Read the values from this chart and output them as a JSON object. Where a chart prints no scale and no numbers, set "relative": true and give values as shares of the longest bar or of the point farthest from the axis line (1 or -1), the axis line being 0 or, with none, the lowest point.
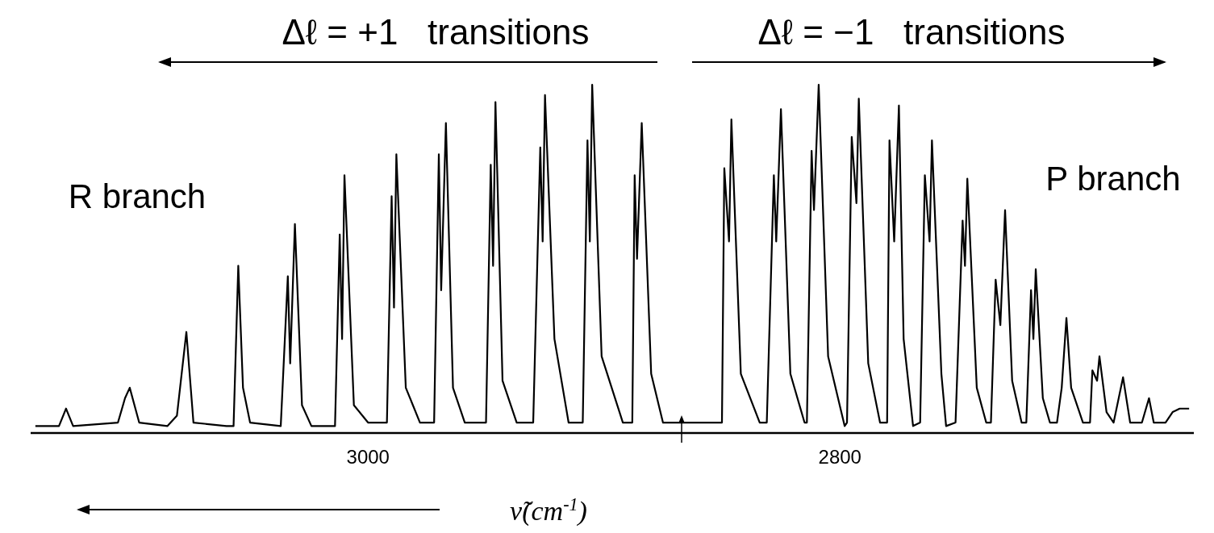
{
  "chart_data": {
    "type": "line",
    "relative": true,
    "xlabel": "ν̃(cm$^{-1}$)",
    "xlim": [
      3143,
      2650
    ],
    "xticks": [
      3000,
      2800
    ],
    "grid": false,
    "marker": "none",
    "line_style": "solid",
    "annotations": [
      "Δℓ = +1   transitions",
      "Δℓ = −1   transitions",
      "R branch",
      "P branch"
    ],
    "x": [
      3141,
      3131,
      3128,
      3125,
      3106,
      3103,
      3101,
      3097,
      3085,
      3081,
      3077,
      3074,
      3060,
      3057,
      3055,
      3053,
      3050,
      3037,
      3034,
      3033,
      3031,
      3028,
      3024,
      3014,
      3012,
      3011,
      3010,
      3006,
      3000,
      2992,
      2990,
      2989,
      2988,
      2984,
      2978,
      2972,
      2970,
      2969,
      2967,
      2964,
      2959,
      2950,
      2948,
      2947,
      2946,
      2943,
      2937,
      2930,
      2927,
      2926,
      2925,
      2921,
      2915,
      2909,
      2907,
      2906,
      2905,
      2901,
      2892,
      2888,
      2887,
      2886,
      2884,
      2880,
      2875,
      2855,
      2850,
      2849,
      2847,
      2846,
      2842,
      2834,
      2831,
      2828,
      2827,
      2825,
      2821,
      2815,
      2814,
      2812,
      2811,
      2809,
      2805,
      2798,
      2797,
      2795,
      2793,
      2792,
      2788,
      2783,
      2780,
      2779,
      2777,
      2775,
      2773,
      2769,
      2766,
      2764,
      2762,
      2761,
      2757,
      2755,
      2751,
      2748,
      2747,
      2746,
      2742,
      2738,
      2736,
      2734,
      2732,
      2730,
      2727,
      2723,
      2721,
      2719,
      2718,
      2717,
      2714,
      2711,
      2708,
      2706,
      2704,
      2702,
      2697,
      2694,
      2693,
      2691,
      2690,
      2687,
      2684,
      2680,
      2677,
      2672,
      2669,
      2667,
      2662,
      2659,
      2656,
      2652
    ],
    "series": [
      {
        "color": "#000000",
        "values": [
          0.02,
          0.02,
          0.07,
          0.02,
          0.03,
          0.1,
          0.13,
          0.03,
          0.02,
          0.05,
          0.29,
          0.03,
          0.02,
          0.02,
          0.48,
          0.13,
          0.03,
          0.02,
          0.45,
          0.2,
          0.6,
          0.08,
          0.02,
          0.02,
          0.57,
          0.27,
          0.74,
          0.08,
          0.03,
          0.03,
          0.68,
          0.36,
          0.8,
          0.13,
          0.03,
          0.03,
          0.8,
          0.41,
          0.89,
          0.13,
          0.03,
          0.03,
          0.77,
          0.48,
          0.95,
          0.15,
          0.03,
          0.03,
          0.82,
          0.55,
          0.97,
          0.27,
          0.03,
          0.03,
          0.84,
          0.55,
          1.0,
          0.22,
          0.03,
          0.03,
          0.74,
          0.5,
          0.89,
          0.17,
          0.03,
          0.03,
          0.03,
          0.76,
          0.55,
          0.9,
          0.17,
          0.03,
          0.03,
          0.74,
          0.55,
          0.93,
          0.17,
          0.03,
          0.03,
          0.81,
          0.64,
          1.0,
          0.22,
          0.02,
          0.03,
          0.85,
          0.66,
          0.96,
          0.2,
          0.03,
          0.03,
          0.84,
          0.55,
          0.94,
          0.27,
          0.02,
          0.03,
          0.74,
          0.55,
          0.84,
          0.17,
          0.02,
          0.03,
          0.61,
          0.48,
          0.73,
          0.13,
          0.03,
          0.03,
          0.44,
          0.31,
          0.64,
          0.15,
          0.03,
          0.03,
          0.41,
          0.27,
          0.47,
          0.1,
          0.03,
          0.03,
          0.13,
          0.33,
          0.13,
          0.03,
          0.03,
          0.18,
          0.15,
          0.22,
          0.06,
          0.03,
          0.16,
          0.03,
          0.03,
          0.1,
          0.03,
          0.03,
          0.06,
          0.07,
          0.07
        ]
      }
    ]
  }
}
